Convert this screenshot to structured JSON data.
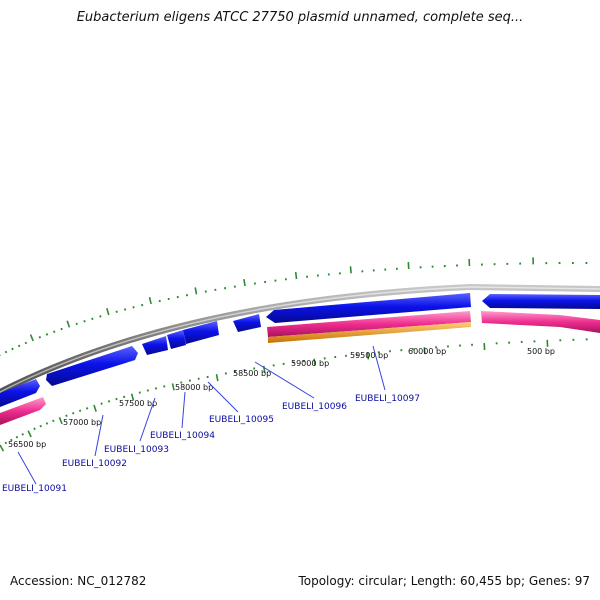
{
  "title": "Eubacterium eligens ATCC 27750 plasmid unnamed, complete seq...",
  "accession_label": "Accession:",
  "accession": "NC_012782",
  "topology_label": "Topology:",
  "topology": "circular",
  "length_label": "Length:",
  "length": "60,455 bp",
  "genes_label": "Genes:",
  "genes": "97",
  "colors": {
    "backbone": "#8a8a8a",
    "forward_gene": "#0b12e8",
    "reverse_gene": "#ef2d8f",
    "orange_feature": "#f59c10",
    "tick": "#2f8a2f",
    "gene_label": "#0a0aa0",
    "leader": "#3344dd"
  },
  "scale_labels": [
    {
      "label": "56500 bp",
      "bp": 56500
    },
    {
      "label": "57000 bp",
      "bp": 57000
    },
    {
      "label": "57500 bp",
      "bp": 57500
    },
    {
      "label": "58000 bp",
      "bp": 58000
    },
    {
      "label": "58500 bp",
      "bp": 58500
    },
    {
      "label": "59000 bp",
      "bp": 59000
    },
    {
      "label": "59500 bp",
      "bp": 59500
    },
    {
      "label": "60000 bp",
      "bp": 60000
    },
    {
      "label": "500 bp",
      "bp": 500
    }
  ],
  "gene_labels": [
    {
      "label": "EUBELI_10091"
    },
    {
      "label": "EUBELI_10092"
    },
    {
      "label": "EUBELI_10093"
    },
    {
      "label": "EUBELI_10094"
    },
    {
      "label": "EUBELI_10095"
    },
    {
      "label": "EUBELI_10096"
    },
    {
      "label": "EUBELI_10097"
    }
  ]
}
